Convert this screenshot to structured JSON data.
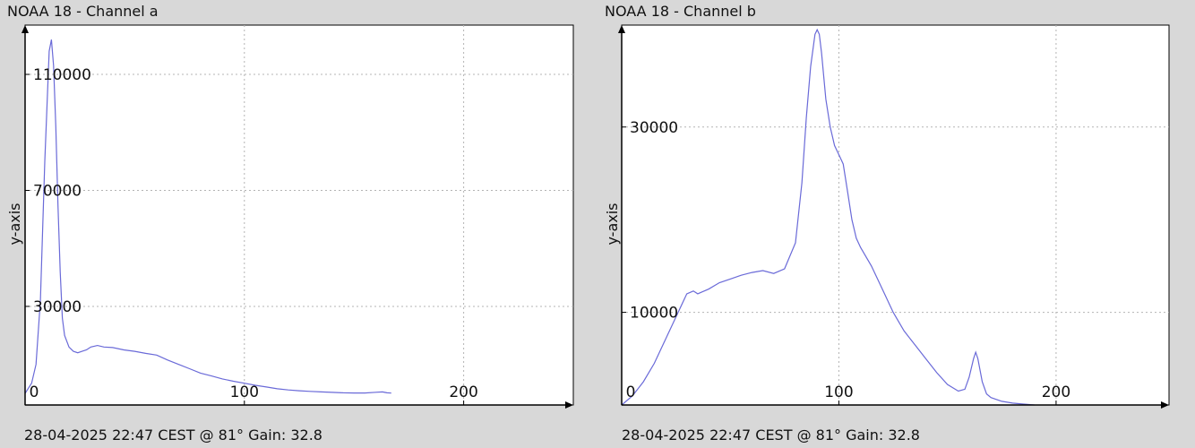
{
  "charts": [
    {
      "title": "NOAA 18 - Channel a",
      "footer": "28-04-2025 22:47 CEST @ 81° Gain: 32.8",
      "ylabel": "y-axis"
    },
    {
      "title": "NOAA 18 - Channel b",
      "footer": "28-04-2025 22:47 CEST @ 81° Gain: 32.8",
      "ylabel": "y-axis"
    }
  ],
  "colors": {
    "line": "#6a6ad8",
    "grid": "#b4b4b4",
    "axis": "#000000",
    "plot_bg": "#ffffff",
    "page_bg": "#d8d8d8"
  },
  "chart_data": [
    {
      "type": "line",
      "title": "NOAA 18 - Channel a",
      "ylabel": "y-axis",
      "xlabel": "",
      "xlim": [
        0,
        250
      ],
      "ylim": [
        -4000,
        127000
      ],
      "x_ticks": [
        0,
        100,
        200
      ],
      "y_ticks": [
        30000,
        70000,
        110000
      ],
      "grid": true,
      "x": [
        0,
        3,
        5,
        7,
        9,
        11,
        12,
        13,
        14,
        15,
        16,
        17,
        18,
        20,
        22,
        24,
        26,
        28,
        30,
        33,
        36,
        40,
        45,
        50,
        55,
        60,
        65,
        70,
        75,
        80,
        85,
        90,
        95,
        100,
        105,
        110,
        115,
        120,
        125,
        130,
        135,
        140,
        145,
        150,
        155,
        160,
        163,
        165,
        167
      ],
      "values": [
        0,
        3500,
        10000,
        32000,
        80000,
        118000,
        122000,
        113000,
        92000,
        65000,
        42000,
        26000,
        20000,
        16000,
        14500,
        14000,
        14500,
        15000,
        16000,
        16500,
        16000,
        15800,
        15000,
        14500,
        13800,
        13200,
        11500,
        10000,
        8500,
        7000,
        6000,
        5000,
        4200,
        3500,
        2800,
        2200,
        1600,
        1200,
        900,
        700,
        500,
        350,
        200,
        150,
        150,
        400,
        500,
        200,
        100
      ]
    },
    {
      "type": "line",
      "title": "NOAA 18 - Channel b",
      "ylabel": "y-axis",
      "xlabel": "",
      "xlim": [
        0,
        252
      ],
      "ylim": [
        0,
        41000
      ],
      "x_ticks": [
        0,
        100,
        200
      ],
      "y_ticks": [
        10000,
        30000
      ],
      "grid": true,
      "x": [
        0,
        5,
        10,
        15,
        20,
        25,
        30,
        33,
        35,
        37,
        40,
        45,
        50,
        55,
        60,
        65,
        70,
        75,
        80,
        83,
        85,
        87,
        89,
        90,
        91,
        92,
        94,
        96,
        98,
        100,
        102,
        104,
        106,
        108,
        110,
        115,
        120,
        125,
        130,
        135,
        140,
        145,
        150,
        155,
        158,
        160,
        162,
        163,
        164,
        166,
        168,
        170,
        175,
        180,
        185,
        190
      ],
      "values": [
        0,
        1000,
        2500,
        4500,
        7000,
        9500,
        12000,
        12300,
        12000,
        12200,
        12500,
        13200,
        13600,
        14000,
        14300,
        14500,
        14200,
        14700,
        17500,
        24000,
        31000,
        36500,
        40000,
        40500,
        40000,
        38000,
        33000,
        30000,
        28000,
        27000,
        26000,
        23000,
        20000,
        18000,
        17000,
        15000,
        12500,
        10000,
        8000,
        6500,
        5000,
        3500,
        2200,
        1500,
        1700,
        3000,
        5000,
        5700,
        5000,
        2500,
        1200,
        800,
        400,
        200,
        100,
        0
      ]
    }
  ]
}
